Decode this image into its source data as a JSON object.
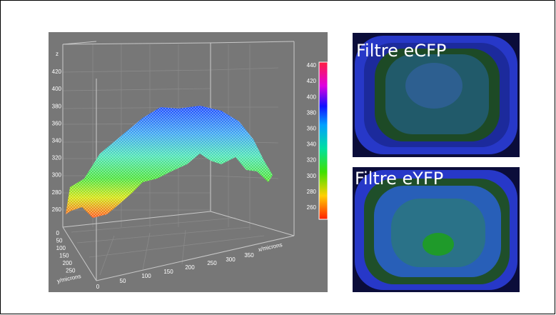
{
  "plot": {
    "z_label": "z",
    "z_ticks": [
      420,
      400,
      380,
      360,
      340,
      320,
      300,
      280,
      260
    ],
    "y_label": "y/microns",
    "y_ticks": [
      0,
      50,
      100,
      150,
      200,
      250
    ],
    "x_label": "x/microns",
    "x_ticks": [
      0,
      50,
      100,
      150,
      200,
      250,
      300,
      350
    ],
    "colorbar_ticks": [
      440,
      420,
      400,
      380,
      360,
      340,
      320,
      300,
      280,
      260
    ]
  },
  "images": [
    {
      "title": "Filtre eCFP"
    },
    {
      "title": "Filtre eYFP"
    }
  ]
}
